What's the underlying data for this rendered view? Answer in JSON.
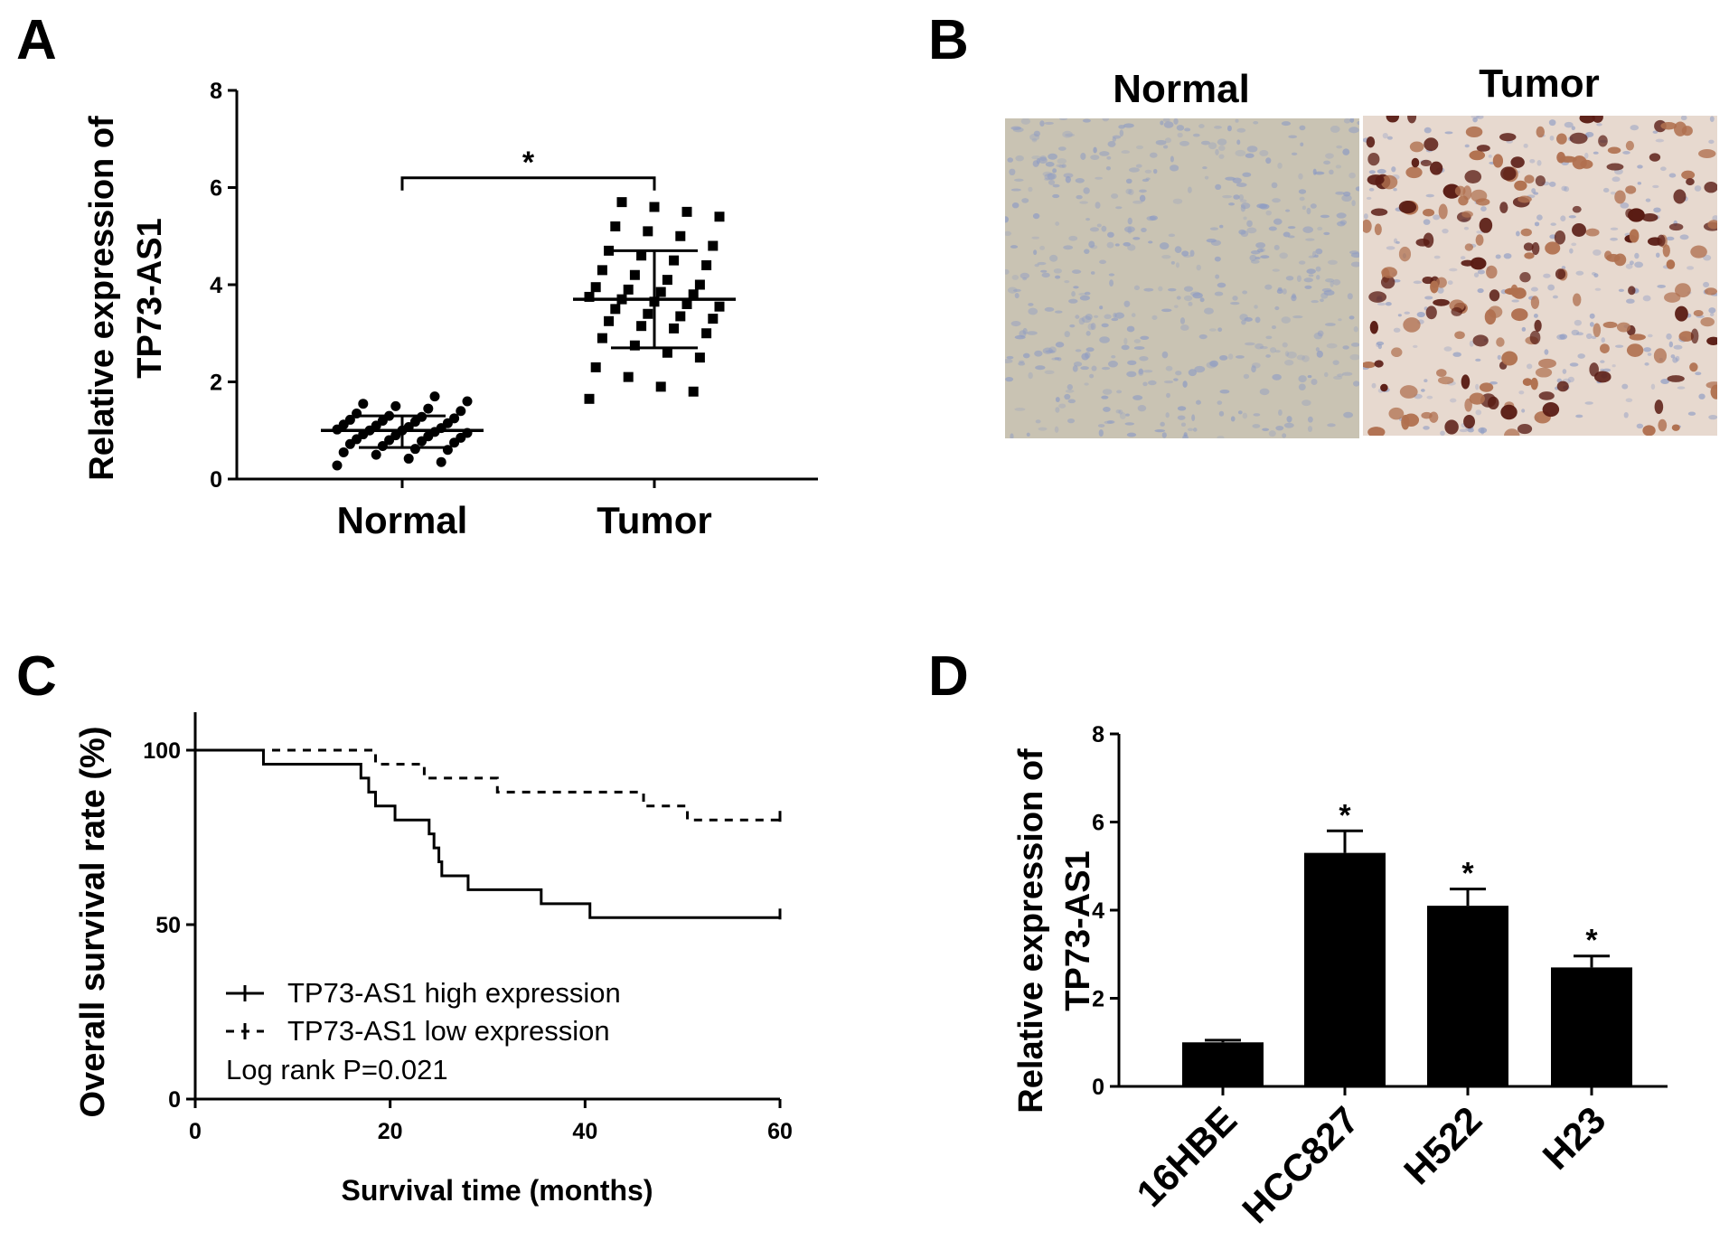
{
  "panels": {
    "A": "A",
    "B": "B",
    "C": "C",
    "D": "D"
  },
  "colors": {
    "ink": "#000000",
    "background": "#ffffff",
    "normal_tissue": "#c9c3b3",
    "tumor_tissue": "#b0704f",
    "stain_nuclei": "#5a1c14",
    "hematoxylin": "#8d9bc4"
  },
  "chart_data": [
    {
      "panel": "A",
      "type": "scatter",
      "ylabel_lines": [
        "Relative expression of",
        "TP73-AS1"
      ],
      "categories": [
        "Normal",
        "Tumor"
      ],
      "ylim": [
        0,
        8
      ],
      "yticks": [
        0,
        2,
        4,
        6,
        8
      ],
      "grid": false,
      "markers": [
        "circle",
        "square"
      ],
      "series": [
        {
          "values": [
            0.28,
            0.35,
            0.42,
            0.5,
            0.55,
            0.6,
            0.62,
            0.68,
            0.72,
            0.75,
            0.78,
            0.8,
            0.82,
            0.85,
            0.88,
            0.9,
            0.92,
            0.95,
            0.97,
            1.0,
            1.0,
            1.02,
            1.05,
            1.07,
            1.1,
            1.12,
            1.15,
            1.18,
            1.2,
            1.22,
            1.25,
            1.28,
            1.3,
            1.35,
            1.4,
            1.45,
            1.5,
            1.55,
            1.6,
            1.7
          ],
          "mean": 1.0,
          "sd_low": 0.65,
          "sd_high": 1.3
        },
        {
          "values": [
            1.65,
            1.8,
            1.9,
            2.1,
            2.3,
            2.5,
            2.6,
            2.75,
            2.9,
            3.0,
            3.1,
            3.15,
            3.25,
            3.3,
            3.35,
            3.4,
            3.5,
            3.55,
            3.6,
            3.65,
            3.7,
            3.75,
            3.8,
            3.85,
            3.9,
            3.95,
            4.0,
            4.1,
            4.2,
            4.3,
            4.4,
            4.5,
            4.6,
            4.7,
            4.8,
            5.0,
            5.1,
            5.2,
            5.4,
            5.5,
            5.6,
            5.7
          ],
          "mean": 3.7,
          "sd_low": 2.7,
          "sd_high": 4.7
        }
      ],
      "annotations": [
        {
          "text": "*",
          "between": [
            "Normal",
            "Tumor"
          ],
          "y": 6.2
        }
      ]
    },
    {
      "panel": "C",
      "type": "line",
      "ylabel": "Overall survival rate (%)",
      "xlabel": "Survival time (months)",
      "xlim": [
        0,
        60
      ],
      "ylim": [
        0,
        100
      ],
      "xticks": [
        0,
        20,
        40,
        60
      ],
      "yticks": [
        0,
        50,
        100
      ],
      "grid": false,
      "legend_position": "bottom-left",
      "series": [
        {
          "name": "TP73-AS1 high expression",
          "style": "solid",
          "x": [
            0,
            7,
            17,
            17.8,
            18.5,
            20.5,
            22,
            24,
            24.5,
            25,
            25.3,
            26,
            28,
            35.5,
            40.5,
            60
          ],
          "y": [
            100,
            96,
            92,
            88,
            84,
            80,
            80,
            76,
            72,
            68,
            64,
            64,
            60,
            56,
            52,
            52
          ]
        },
        {
          "name": "TP73-AS1 low expression",
          "style": "dashed",
          "x": [
            0,
            18.5,
            23.5,
            31,
            46,
            50.5,
            60
          ],
          "y": [
            100,
            96,
            92,
            88,
            84,
            80,
            80
          ]
        }
      ],
      "annotation": "Log rank P=0.021"
    },
    {
      "panel": "D",
      "type": "bar",
      "ylabel_lines": [
        "Relative expression of",
        "TP73-AS1"
      ],
      "categories": [
        "16HBE",
        "HCC827",
        "H522",
        "H23"
      ],
      "values": [
        1.0,
        5.3,
        4.1,
        2.7
      ],
      "errors": [
        0.05,
        0.5,
        0.38,
        0.26
      ],
      "significance": [
        "",
        "*",
        "*",
        "*"
      ],
      "ylim": [
        0,
        8
      ],
      "yticks": [
        0,
        2,
        4,
        6,
        8
      ],
      "grid": false
    }
  ],
  "micrographs": {
    "normal_label": "Normal",
    "tumor_label": "Tumor"
  }
}
